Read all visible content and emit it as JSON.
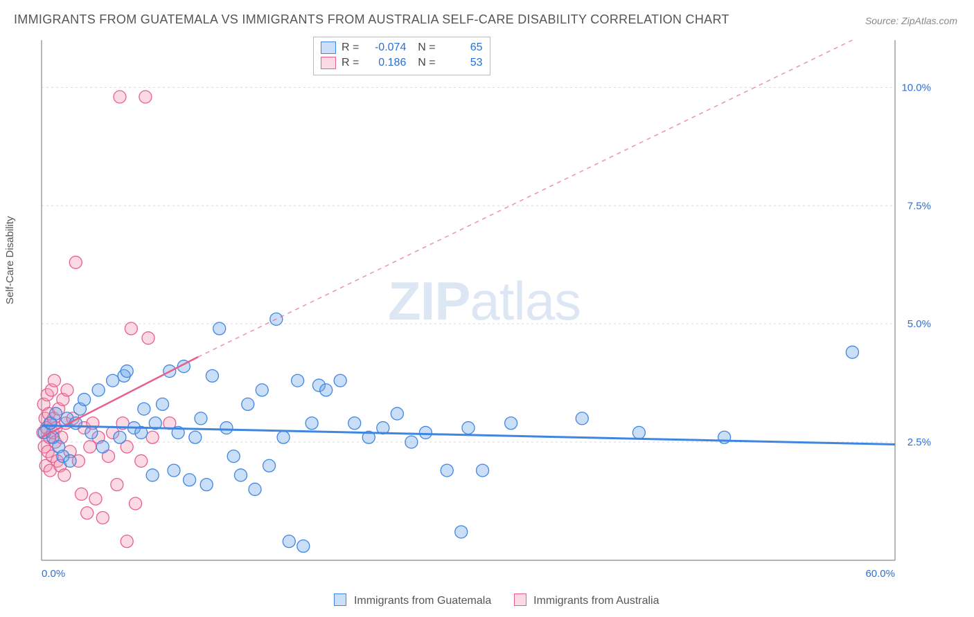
{
  "title": "IMMIGRANTS FROM GUATEMALA VS IMMIGRANTS FROM AUSTRALIA SELF-CARE DISABILITY CORRELATION CHART",
  "source": "Source: ZipAtlas.com",
  "ylabel": "Self-Care Disability",
  "watermark": {
    "a": "ZIP",
    "b": "atlas"
  },
  "xlim": [
    0,
    60
  ],
  "ylim": [
    0,
    11
  ],
  "x_ticks": [
    {
      "v": 0,
      "label": "0.0%"
    },
    {
      "v": 60,
      "label": "60.0%"
    }
  ],
  "y_ticks": [
    {
      "v": 2.5,
      "label": "2.5%"
    },
    {
      "v": 5.0,
      "label": "5.0%"
    },
    {
      "v": 7.5,
      "label": "7.5%"
    },
    {
      "v": 10.0,
      "label": "10.0%"
    }
  ],
  "grid_color": "#d9d9d9",
  "axis_color": "#888888",
  "background_color": "#ffffff",
  "label_color": "#2a6fd6",
  "series": {
    "guatemala": {
      "label": "Immigrants from Guatemala",
      "color": "#3f86e2",
      "fill": "rgba(102,163,232,0.35)",
      "R": "-0.074",
      "N": "65",
      "marker_r": 9,
      "trend": {
        "x1": 0,
        "y1": 2.85,
        "x2": 60,
        "y2": 2.45,
        "width": 3,
        "dash": ""
      },
      "points": [
        [
          0.2,
          2.7
        ],
        [
          0.6,
          2.9
        ],
        [
          0.8,
          2.6
        ],
        [
          1.0,
          3.1
        ],
        [
          1.2,
          2.4
        ],
        [
          1.5,
          2.2
        ],
        [
          1.8,
          3.0
        ],
        [
          2.0,
          2.1
        ],
        [
          2.4,
          2.9
        ],
        [
          2.7,
          3.2
        ],
        [
          3.0,
          3.4
        ],
        [
          3.5,
          2.7
        ],
        [
          4.0,
          3.6
        ],
        [
          4.3,
          2.4
        ],
        [
          5.0,
          3.8
        ],
        [
          5.5,
          2.6
        ],
        [
          5.8,
          3.9
        ],
        [
          6.0,
          4.0
        ],
        [
          6.5,
          2.8
        ],
        [
          7.0,
          2.7
        ],
        [
          7.2,
          3.2
        ],
        [
          7.8,
          1.8
        ],
        [
          8.0,
          2.9
        ],
        [
          8.5,
          3.3
        ],
        [
          9.0,
          4.0
        ],
        [
          9.3,
          1.9
        ],
        [
          9.6,
          2.7
        ],
        [
          10.0,
          4.1
        ],
        [
          10.4,
          1.7
        ],
        [
          10.8,
          2.6
        ],
        [
          11.2,
          3.0
        ],
        [
          11.6,
          1.6
        ],
        [
          12.0,
          3.9
        ],
        [
          12.5,
          4.9
        ],
        [
          13.0,
          2.8
        ],
        [
          13.5,
          2.2
        ],
        [
          14.0,
          1.8
        ],
        [
          14.5,
          3.3
        ],
        [
          15.0,
          1.5
        ],
        [
          15.5,
          3.6
        ],
        [
          16.0,
          2.0
        ],
        [
          16.5,
          5.1
        ],
        [
          17.0,
          2.6
        ],
        [
          17.4,
          0.4
        ],
        [
          18.0,
          3.8
        ],
        [
          18.4,
          0.3
        ],
        [
          19.0,
          2.9
        ],
        [
          19.5,
          3.7
        ],
        [
          20.0,
          3.6
        ],
        [
          21.0,
          3.8
        ],
        [
          22.0,
          2.9
        ],
        [
          23.0,
          2.6
        ],
        [
          24.0,
          2.8
        ],
        [
          25.0,
          3.1
        ],
        [
          26.0,
          2.5
        ],
        [
          27.0,
          2.7
        ],
        [
          28.5,
          1.9
        ],
        [
          29.5,
          0.6
        ],
        [
          30.0,
          2.8
        ],
        [
          31.0,
          1.9
        ],
        [
          33.0,
          2.9
        ],
        [
          38.0,
          3.0
        ],
        [
          42.0,
          2.7
        ],
        [
          48.0,
          2.6
        ],
        [
          57.0,
          4.4
        ]
      ]
    },
    "australia": {
      "label": "Immigrants from Australia",
      "color": "#e85f8e",
      "fill": "rgba(244,149,178,0.35)",
      "R": "0.186",
      "N": "53",
      "marker_r": 9,
      "trend": {
        "x1": 0,
        "y1": 2.6,
        "x2": 11,
        "y2": 4.3,
        "width": 2.5,
        "dash": ""
      },
      "extrap": {
        "x1": 11,
        "y1": 4.3,
        "x2": 57,
        "y2": 11.0,
        "width": 1.5,
        "dash": "6 6"
      },
      "points": [
        [
          0.1,
          2.7
        ],
        [
          0.15,
          3.3
        ],
        [
          0.2,
          2.4
        ],
        [
          0.25,
          3.0
        ],
        [
          0.3,
          2.0
        ],
        [
          0.35,
          2.8
        ],
        [
          0.4,
          3.5
        ],
        [
          0.45,
          2.3
        ],
        [
          0.5,
          3.1
        ],
        [
          0.55,
          2.6
        ],
        [
          0.6,
          1.9
        ],
        [
          0.65,
          2.9
        ],
        [
          0.7,
          3.6
        ],
        [
          0.75,
          2.2
        ],
        [
          0.8,
          2.7
        ],
        [
          0.85,
          3.0
        ],
        [
          0.9,
          3.8
        ],
        [
          0.95,
          2.5
        ],
        [
          1.0,
          2.8
        ],
        [
          1.1,
          2.1
        ],
        [
          1.2,
          3.2
        ],
        [
          1.3,
          2.0
        ],
        [
          1.4,
          2.6
        ],
        [
          1.5,
          3.4
        ],
        [
          1.6,
          1.8
        ],
        [
          1.7,
          2.9
        ],
        [
          1.8,
          3.6
        ],
        [
          2.0,
          2.3
        ],
        [
          2.2,
          3.0
        ],
        [
          2.4,
          6.3
        ],
        [
          2.6,
          2.1
        ],
        [
          2.8,
          1.4
        ],
        [
          3.0,
          2.8
        ],
        [
          3.2,
          1.0
        ],
        [
          3.4,
          2.4
        ],
        [
          3.6,
          2.9
        ],
        [
          3.8,
          1.3
        ],
        [
          4.0,
          2.6
        ],
        [
          4.3,
          0.9
        ],
        [
          4.7,
          2.2
        ],
        [
          5.0,
          2.7
        ],
        [
          5.3,
          1.6
        ],
        [
          5.5,
          9.8
        ],
        [
          5.7,
          2.9
        ],
        [
          6.0,
          2.4
        ],
        [
          6.3,
          4.9
        ],
        [
          6.6,
          1.2
        ],
        [
          7.0,
          2.1
        ],
        [
          7.3,
          9.8
        ],
        [
          7.5,
          4.7
        ],
        [
          7.8,
          2.6
        ],
        [
          6.0,
          0.4
        ],
        [
          9.0,
          2.9
        ]
      ]
    }
  },
  "bottom_legend": {
    "items": [
      {
        "key": "guatemala"
      },
      {
        "key": "australia"
      }
    ]
  }
}
